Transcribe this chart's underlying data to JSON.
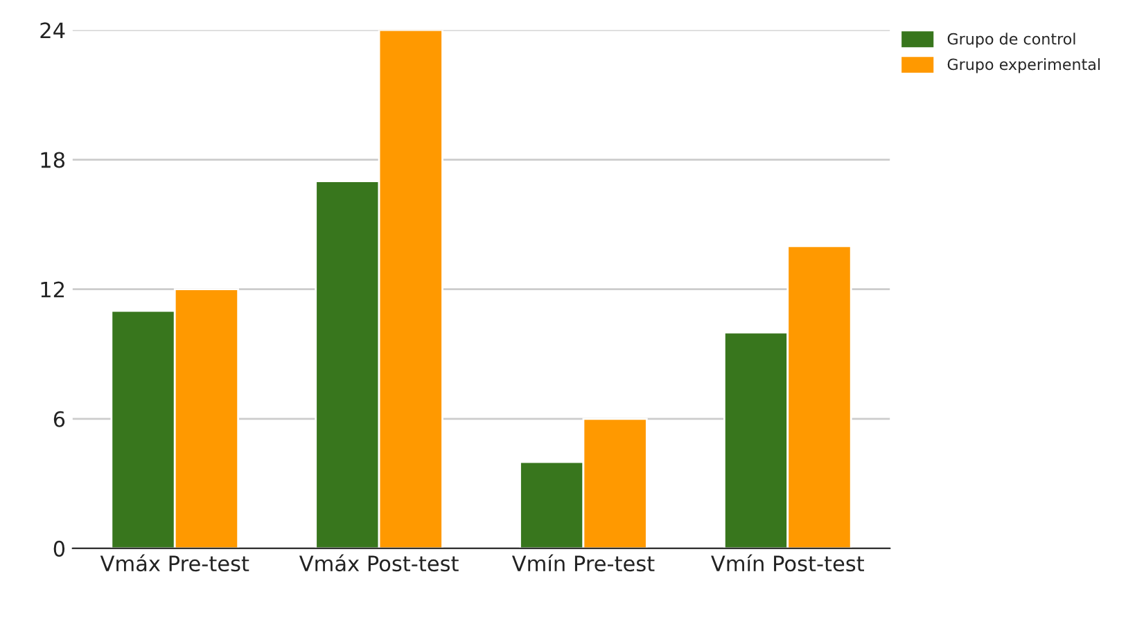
{
  "chart_data": {
    "type": "bar",
    "categories": [
      "Vmáx Pre-test",
      "Vmáx Post-test",
      "Vmín Pre-test",
      "Vmín Post-test"
    ],
    "series": [
      {
        "name": "Grupo de control",
        "color": "#38761d",
        "values": [
          11,
          17,
          4,
          10
        ]
      },
      {
        "name": "Grupo experimental",
        "color": "#ff9900",
        "values": [
          12,
          24,
          6,
          14
        ]
      }
    ],
    "ylim": [
      0,
      24
    ],
    "yticks": [
      0,
      6,
      12,
      18,
      24
    ],
    "grid": "y",
    "legend": "top right"
  }
}
